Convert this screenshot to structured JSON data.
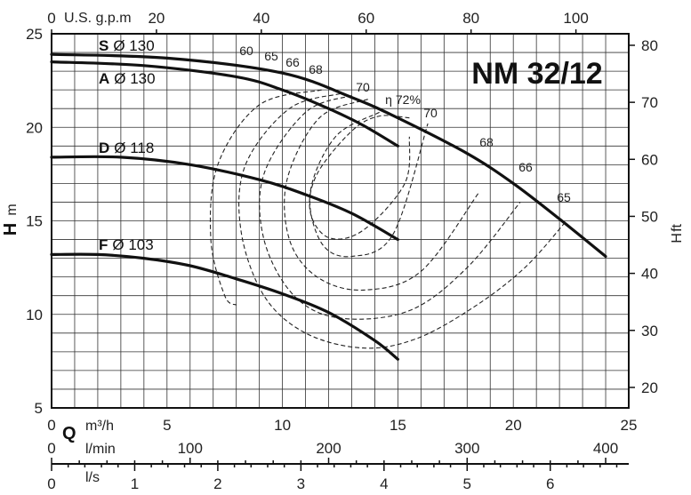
{
  "chart_data": {
    "type": "line",
    "title": "NM 32/12",
    "x": {
      "label_letter": "Q",
      "primary_unit": "m³/h",
      "range": [
        0,
        25
      ],
      "ticks": [
        "0",
        "5",
        "10",
        "15",
        "20",
        "25"
      ]
    },
    "y_left": {
      "label_letter": "H",
      "unit": "m",
      "range": [
        5,
        25
      ],
      "ticks": [
        "5",
        "10",
        "15",
        "20",
        "25"
      ]
    },
    "y_right": {
      "label_letter": "H",
      "unit": "ft",
      "ticks": [
        "20",
        "30",
        "40",
        "50",
        "60",
        "70",
        "80"
      ]
    },
    "top_axis": {
      "unit": "U.S. g.p.m",
      "ticks": [
        "0",
        "20",
        "40",
        "60",
        "80",
        "100"
      ]
    },
    "bottom_axes": [
      {
        "unit": "l/min",
        "ticks": [
          "0",
          "100",
          "200",
          "300",
          "400"
        ]
      },
      {
        "unit": "l/s",
        "ticks": [
          "0",
          "1",
          "2",
          "3",
          "4",
          "5",
          "6"
        ]
      }
    ],
    "grid": true,
    "series": [
      {
        "name": "S",
        "diameter": "Ø 130",
        "x": [
          0,
          5,
          10,
          13,
          15,
          18,
          20,
          22,
          24
        ],
        "y": [
          23.9,
          23.7,
          22.9,
          21.6,
          20.5,
          18.6,
          17.0,
          15.1,
          13.1
        ]
      },
      {
        "name": "A",
        "diameter": "Ø 130",
        "x": [
          0,
          4,
          8,
          10,
          12,
          13.5,
          15
        ],
        "y": [
          23.5,
          23.3,
          22.7,
          22.0,
          21.0,
          20.1,
          19.0
        ]
      },
      {
        "name": "D",
        "diameter": "Ø 118",
        "x": [
          0,
          3,
          6,
          9,
          11,
          13,
          15
        ],
        "y": [
          18.4,
          18.4,
          18.0,
          17.2,
          16.4,
          15.4,
          14.0
        ]
      },
      {
        "name": "F",
        "diameter": "Ø 103",
        "x": [
          0,
          2,
          4,
          6,
          8,
          10,
          12,
          14,
          15
        ],
        "y": [
          13.2,
          13.2,
          13.0,
          12.6,
          11.9,
          11.1,
          10.1,
          8.6,
          7.6
        ]
      }
    ],
    "efficiency_contours": [
      {
        "label": "60",
        "x": [
          11.7,
          9.0,
          7.2,
          6.9,
          7.5,
          8.0
        ],
        "y": [
          22.0,
          21.2,
          18.0,
          14.0,
          11.0,
          10.5
        ]
      },
      {
        "label": "65",
        "x": [
          12.5,
          10.3,
          8.4,
          8.2,
          9.2,
          11.0,
          13.5,
          15.8,
          18.3,
          20.5,
          22.3
        ],
        "y": [
          21.8,
          21.0,
          18.0,
          14.5,
          11.0,
          9.0,
          8.2,
          8.7,
          10.4,
          12.5,
          15.0
        ]
      },
      {
        "label": "66",
        "x": [
          13.0,
          11.0,
          9.2,
          9.2,
          10.5,
          12.5,
          15.5,
          18.0,
          20.3
        ],
        "y": [
          21.7,
          20.8,
          17.5,
          14.0,
          11.0,
          9.8,
          10.2,
          12.5,
          16.0
        ]
      },
      {
        "label": "68",
        "x": [
          13.7,
          11.6,
          10.2,
          10.3,
          11.5,
          13.5,
          16.0,
          18.5
        ],
        "y": [
          21.5,
          20.5,
          17.2,
          14.0,
          12.0,
          11.3,
          12.3,
          16.5
        ]
      },
      {
        "label": "70",
        "x": [
          14.2,
          12.3,
          11.2,
          11.7,
          13.0,
          14.8,
          16.3
        ],
        "y": [
          20.8,
          19.5,
          16.5,
          13.8,
          13.1,
          14.3,
          20.2
        ]
      },
      {
        "label": "72%",
        "x": [
          15.5,
          14.2,
          13.0,
          11.5,
          11.2,
          12.0,
          13.5,
          15.3,
          15.5
        ],
        "y": [
          20.5,
          20.6,
          19.8,
          17.5,
          15.5,
          14.1,
          14.5,
          17.0,
          19.5
        ]
      }
    ],
    "eff_prefix": "η",
    "y_left_unit_suffix": "m",
    "eff_labels": [
      "60",
      "65",
      "66",
      "68",
      "70",
      "72%",
      "70",
      "68",
      "66",
      "65"
    ]
  }
}
